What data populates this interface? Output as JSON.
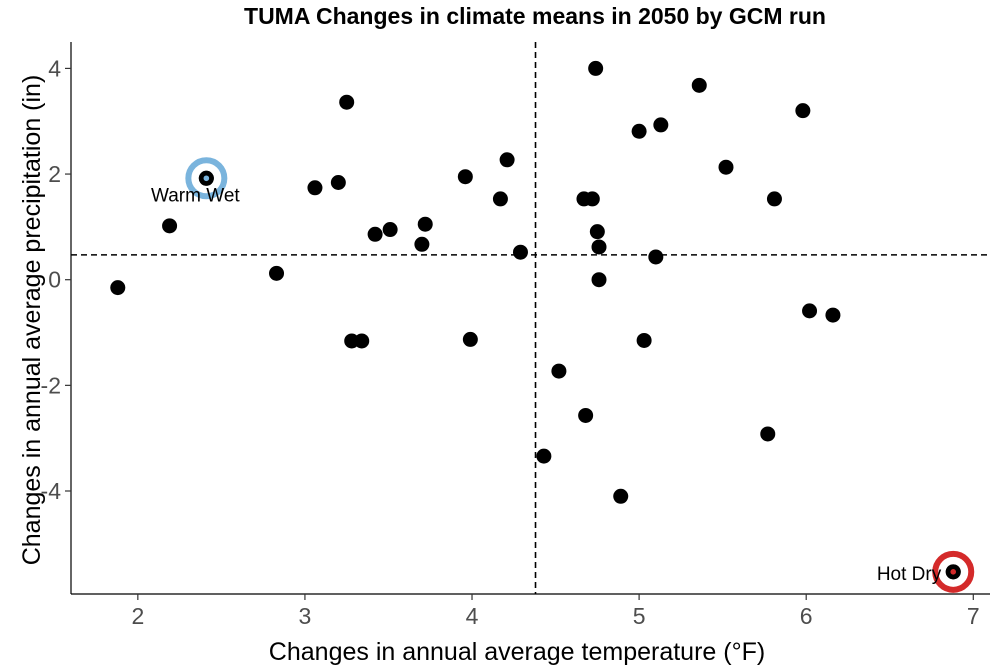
{
  "chart_data": {
    "type": "scatter",
    "title": "TUMA Changes in climate means in 2050 by GCM run",
    "xlabel": "Changes in annual average temperature (°F)",
    "ylabel": "Changes in annual average precipitation (in)",
    "xlim": [
      1.6,
      7.1
    ],
    "ylim": [
      -5.95,
      4.5
    ],
    "x_ticks": [
      "2",
      "3",
      "4",
      "5",
      "6",
      "7"
    ],
    "y_ticks": [
      "-4",
      "-2",
      "0",
      "2",
      "4"
    ],
    "grid": false,
    "ref_lines": {
      "x": 4.38,
      "y": 0.47
    },
    "points": [
      {
        "x": 1.88,
        "y": -0.15
      },
      {
        "x": 2.19,
        "y": 1.02
      },
      {
        "x": 2.41,
        "y": 1.92
      },
      {
        "x": 2.83,
        "y": 0.12
      },
      {
        "x": 3.06,
        "y": 1.74
      },
      {
        "x": 3.2,
        "y": 1.84
      },
      {
        "x": 3.25,
        "y": 3.36
      },
      {
        "x": 3.28,
        "y": -1.16
      },
      {
        "x": 3.34,
        "y": -1.16
      },
      {
        "x": 3.42,
        "y": 0.86
      },
      {
        "x": 3.51,
        "y": 0.95
      },
      {
        "x": 3.7,
        "y": 0.67
      },
      {
        "x": 3.72,
        "y": 1.05
      },
      {
        "x": 3.96,
        "y": 1.95
      },
      {
        "x": 3.99,
        "y": -1.13
      },
      {
        "x": 4.17,
        "y": 1.53
      },
      {
        "x": 4.21,
        "y": 2.27
      },
      {
        "x": 4.29,
        "y": 0.52
      },
      {
        "x": 4.43,
        "y": -3.34
      },
      {
        "x": 4.52,
        "y": -1.73
      },
      {
        "x": 4.67,
        "y": 1.53
      },
      {
        "x": 4.68,
        "y": -2.57
      },
      {
        "x": 4.72,
        "y": 1.53
      },
      {
        "x": 4.74,
        "y": 4.0
      },
      {
        "x": 4.75,
        "y": 0.91
      },
      {
        "x": 4.76,
        "y": 0.62
      },
      {
        "x": 4.76,
        "y": 0.0
      },
      {
        "x": 4.89,
        "y": -4.1
      },
      {
        "x": 5.0,
        "y": 2.81
      },
      {
        "x": 5.03,
        "y": -1.15
      },
      {
        "x": 5.1,
        "y": 0.43
      },
      {
        "x": 5.13,
        "y": 2.93
      },
      {
        "x": 5.36,
        "y": 3.68
      },
      {
        "x": 5.52,
        "y": 2.13
      },
      {
        "x": 5.77,
        "y": -2.92
      },
      {
        "x": 5.81,
        "y": 1.53
      },
      {
        "x": 5.98,
        "y": 3.2
      },
      {
        "x": 6.02,
        "y": -0.59
      },
      {
        "x": 6.16,
        "y": -0.67
      },
      {
        "x": 6.88,
        "y": -5.53
      }
    ],
    "highlights": [
      {
        "label": "Warm Wet",
        "x": 2.41,
        "y": 1.92,
        "color": "#7ab4dd"
      },
      {
        "label": "Hot Dry",
        "x": 6.88,
        "y": -5.53,
        "color": "#d42a2a"
      }
    ],
    "point_color": "#000000"
  }
}
